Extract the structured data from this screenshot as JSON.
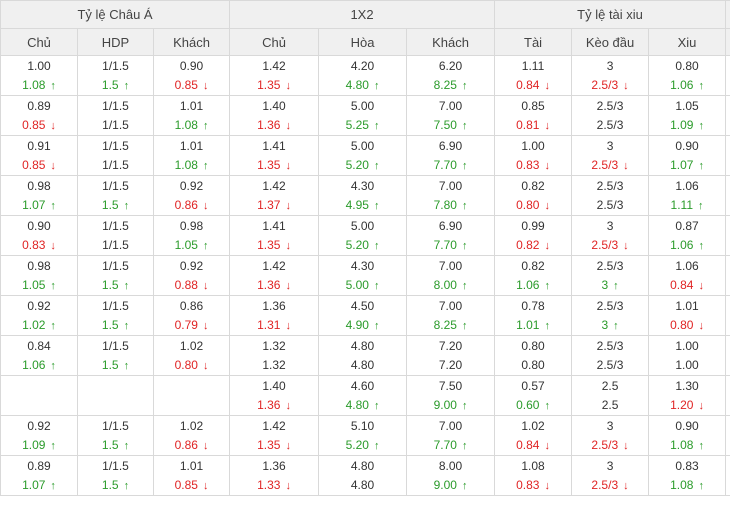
{
  "groups": [
    "Tỷ lệ Châu Á",
    "1X2",
    "Tỷ lệ tài xiu"
  ],
  "columns": [
    "Chủ",
    "HDP",
    "Khách",
    "Chủ",
    "Hòa",
    "Khách",
    "Tài",
    "Kèo đầu",
    "Xiu"
  ],
  "rows": [
    [
      [
        {
          "v": "1.00",
          "d": ""
        },
        {
          "v": "1.08",
          "d": "up"
        }
      ],
      [
        {
          "v": "1/1.5",
          "d": ""
        },
        {
          "v": "1.5",
          "d": "up"
        }
      ],
      [
        {
          "v": "0.90",
          "d": ""
        },
        {
          "v": "0.85",
          "d": "down"
        }
      ],
      [
        {
          "v": "1.42",
          "d": ""
        },
        {
          "v": "1.35",
          "d": "down"
        }
      ],
      [
        {
          "v": "4.20",
          "d": ""
        },
        {
          "v": "4.80",
          "d": "up"
        }
      ],
      [
        {
          "v": "6.20",
          "d": ""
        },
        {
          "v": "8.25",
          "d": "up"
        }
      ],
      [
        {
          "v": "1.11",
          "d": ""
        },
        {
          "v": "0.84",
          "d": "down"
        }
      ],
      [
        {
          "v": "3",
          "d": ""
        },
        {
          "v": "2.5/3",
          "d": "down"
        }
      ],
      [
        {
          "v": "0.80",
          "d": ""
        },
        {
          "v": "1.06",
          "d": "up"
        }
      ]
    ],
    [
      [
        {
          "v": "0.89",
          "d": ""
        },
        {
          "v": "0.85",
          "d": "down"
        }
      ],
      [
        {
          "v": "1/1.5",
          "d": ""
        },
        {
          "v": "1/1.5",
          "d": ""
        }
      ],
      [
        {
          "v": "1.01",
          "d": ""
        },
        {
          "v": "1.08",
          "d": "up"
        }
      ],
      [
        {
          "v": "1.40",
          "d": ""
        },
        {
          "v": "1.36",
          "d": "down"
        }
      ],
      [
        {
          "v": "5.00",
          "d": ""
        },
        {
          "v": "5.25",
          "d": "up"
        }
      ],
      [
        {
          "v": "7.00",
          "d": ""
        },
        {
          "v": "7.50",
          "d": "up"
        }
      ],
      [
        {
          "v": "0.85",
          "d": ""
        },
        {
          "v": "0.81",
          "d": "down"
        }
      ],
      [
        {
          "v": "2.5/3",
          "d": ""
        },
        {
          "v": "2.5/3",
          "d": ""
        }
      ],
      [
        {
          "v": "1.05",
          "d": ""
        },
        {
          "v": "1.09",
          "d": "up"
        }
      ]
    ],
    [
      [
        {
          "v": "0.91",
          "d": ""
        },
        {
          "v": "0.85",
          "d": "down"
        }
      ],
      [
        {
          "v": "1/1.5",
          "d": ""
        },
        {
          "v": "1/1.5",
          "d": ""
        }
      ],
      [
        {
          "v": "1.01",
          "d": ""
        },
        {
          "v": "1.08",
          "d": "up"
        }
      ],
      [
        {
          "v": "1.41",
          "d": ""
        },
        {
          "v": "1.35",
          "d": "down"
        }
      ],
      [
        {
          "v": "5.00",
          "d": ""
        },
        {
          "v": "5.20",
          "d": "up"
        }
      ],
      [
        {
          "v": "6.90",
          "d": ""
        },
        {
          "v": "7.70",
          "d": "up"
        }
      ],
      [
        {
          "v": "1.00",
          "d": ""
        },
        {
          "v": "0.83",
          "d": "down"
        }
      ],
      [
        {
          "v": "3",
          "d": ""
        },
        {
          "v": "2.5/3",
          "d": "down"
        }
      ],
      [
        {
          "v": "0.90",
          "d": ""
        },
        {
          "v": "1.07",
          "d": "up"
        }
      ]
    ],
    [
      [
        {
          "v": "0.98",
          "d": ""
        },
        {
          "v": "1.07",
          "d": "up"
        }
      ],
      [
        {
          "v": "1/1.5",
          "d": ""
        },
        {
          "v": "1.5",
          "d": "up"
        }
      ],
      [
        {
          "v": "0.92",
          "d": ""
        },
        {
          "v": "0.86",
          "d": "down"
        }
      ],
      [
        {
          "v": "1.42",
          "d": ""
        },
        {
          "v": "1.37",
          "d": "down"
        }
      ],
      [
        {
          "v": "4.30",
          "d": ""
        },
        {
          "v": "4.95",
          "d": "up"
        }
      ],
      [
        {
          "v": "7.00",
          "d": ""
        },
        {
          "v": "7.80",
          "d": "up"
        }
      ],
      [
        {
          "v": "0.82",
          "d": ""
        },
        {
          "v": "0.80",
          "d": "down"
        }
      ],
      [
        {
          "v": "2.5/3",
          "d": ""
        },
        {
          "v": "2.5/3",
          "d": ""
        }
      ],
      [
        {
          "v": "1.06",
          "d": ""
        },
        {
          "v": "1.11",
          "d": "up"
        }
      ]
    ],
    [
      [
        {
          "v": "0.90",
          "d": ""
        },
        {
          "v": "0.83",
          "d": "down"
        }
      ],
      [
        {
          "v": "1/1.5",
          "d": ""
        },
        {
          "v": "1/1.5",
          "d": ""
        }
      ],
      [
        {
          "v": "0.98",
          "d": ""
        },
        {
          "v": "1.05",
          "d": "up"
        }
      ],
      [
        {
          "v": "1.41",
          "d": ""
        },
        {
          "v": "1.35",
          "d": "down"
        }
      ],
      [
        {
          "v": "5.00",
          "d": ""
        },
        {
          "v": "5.20",
          "d": "up"
        }
      ],
      [
        {
          "v": "6.90",
          "d": ""
        },
        {
          "v": "7.70",
          "d": "up"
        }
      ],
      [
        {
          "v": "0.99",
          "d": ""
        },
        {
          "v": "0.82",
          "d": "down"
        }
      ],
      [
        {
          "v": "3",
          "d": ""
        },
        {
          "v": "2.5/3",
          "d": "down"
        }
      ],
      [
        {
          "v": "0.87",
          "d": ""
        },
        {
          "v": "1.06",
          "d": "up"
        }
      ]
    ],
    [
      [
        {
          "v": "0.98",
          "d": ""
        },
        {
          "v": "1.05",
          "d": "up"
        }
      ],
      [
        {
          "v": "1/1.5",
          "d": ""
        },
        {
          "v": "1.5",
          "d": "up"
        }
      ],
      [
        {
          "v": "0.92",
          "d": ""
        },
        {
          "v": "0.88",
          "d": "down"
        }
      ],
      [
        {
          "v": "1.42",
          "d": ""
        },
        {
          "v": "1.36",
          "d": "down"
        }
      ],
      [
        {
          "v": "4.30",
          "d": ""
        },
        {
          "v": "5.00",
          "d": "up"
        }
      ],
      [
        {
          "v": "7.00",
          "d": ""
        },
        {
          "v": "8.00",
          "d": "up"
        }
      ],
      [
        {
          "v": "0.82",
          "d": ""
        },
        {
          "v": "1.06",
          "d": "up"
        }
      ],
      [
        {
          "v": "2.5/3",
          "d": ""
        },
        {
          "v": "3",
          "d": "up"
        }
      ],
      [
        {
          "v": "1.06",
          "d": ""
        },
        {
          "v": "0.84",
          "d": "down"
        }
      ]
    ],
    [
      [
        {
          "v": "0.92",
          "d": ""
        },
        {
          "v": "1.02",
          "d": "up"
        }
      ],
      [
        {
          "v": "1/1.5",
          "d": ""
        },
        {
          "v": "1.5",
          "d": "up"
        }
      ],
      [
        {
          "v": "0.86",
          "d": ""
        },
        {
          "v": "0.79",
          "d": "down"
        }
      ],
      [
        {
          "v": "1.36",
          "d": ""
        },
        {
          "v": "1.31",
          "d": "down"
        }
      ],
      [
        {
          "v": "4.50",
          "d": ""
        },
        {
          "v": "4.90",
          "d": "up"
        }
      ],
      [
        {
          "v": "7.00",
          "d": ""
        },
        {
          "v": "8.25",
          "d": "up"
        }
      ],
      [
        {
          "v": "0.78",
          "d": ""
        },
        {
          "v": "1.01",
          "d": "up"
        }
      ],
      [
        {
          "v": "2.5/3",
          "d": ""
        },
        {
          "v": "3",
          "d": "up"
        }
      ],
      [
        {
          "v": "1.01",
          "d": ""
        },
        {
          "v": "0.80",
          "d": "down"
        }
      ]
    ],
    [
      [
        {
          "v": "0.84",
          "d": ""
        },
        {
          "v": "1.06",
          "d": "up"
        }
      ],
      [
        {
          "v": "1/1.5",
          "d": ""
        },
        {
          "v": "1.5",
          "d": "up"
        }
      ],
      [
        {
          "v": "1.02",
          "d": ""
        },
        {
          "v": "0.80",
          "d": "down"
        }
      ],
      [
        {
          "v": "1.32",
          "d": ""
        },
        {
          "v": "1.32",
          "d": ""
        }
      ],
      [
        {
          "v": "4.80",
          "d": ""
        },
        {
          "v": "4.80",
          "d": ""
        }
      ],
      [
        {
          "v": "7.20",
          "d": ""
        },
        {
          "v": "7.20",
          "d": ""
        }
      ],
      [
        {
          "v": "0.80",
          "d": ""
        },
        {
          "v": "0.80",
          "d": ""
        }
      ],
      [
        {
          "v": "2.5/3",
          "d": ""
        },
        {
          "v": "2.5/3",
          "d": ""
        }
      ],
      [
        {
          "v": "1.00",
          "d": ""
        },
        {
          "v": "1.00",
          "d": ""
        }
      ]
    ],
    [
      [
        {
          "v": "",
          "d": ""
        },
        {
          "v": "",
          "d": ""
        }
      ],
      [
        {
          "v": "",
          "d": ""
        },
        {
          "v": "",
          "d": ""
        }
      ],
      [
        {
          "v": "",
          "d": ""
        },
        {
          "v": "",
          "d": ""
        }
      ],
      [
        {
          "v": "1.40",
          "d": ""
        },
        {
          "v": "1.36",
          "d": "down"
        }
      ],
      [
        {
          "v": "4.60",
          "d": ""
        },
        {
          "v": "4.80",
          "d": "up"
        }
      ],
      [
        {
          "v": "7.50",
          "d": ""
        },
        {
          "v": "9.00",
          "d": "up"
        }
      ],
      [
        {
          "v": "0.57",
          "d": ""
        },
        {
          "v": "0.60",
          "d": "up"
        }
      ],
      [
        {
          "v": "2.5",
          "d": ""
        },
        {
          "v": "2.5",
          "d": ""
        }
      ],
      [
        {
          "v": "1.30",
          "d": ""
        },
        {
          "v": "1.20",
          "d": "down"
        }
      ]
    ],
    [
      [
        {
          "v": "0.92",
          "d": ""
        },
        {
          "v": "1.09",
          "d": "up"
        }
      ],
      [
        {
          "v": "1/1.5",
          "d": ""
        },
        {
          "v": "1.5",
          "d": "up"
        }
      ],
      [
        {
          "v": "1.02",
          "d": ""
        },
        {
          "v": "0.86",
          "d": "down"
        }
      ],
      [
        {
          "v": "1.42",
          "d": ""
        },
        {
          "v": "1.35",
          "d": "down"
        }
      ],
      [
        {
          "v": "5.10",
          "d": ""
        },
        {
          "v": "5.20",
          "d": "up"
        }
      ],
      [
        {
          "v": "7.00",
          "d": ""
        },
        {
          "v": "7.70",
          "d": "up"
        }
      ],
      [
        {
          "v": "1.02",
          "d": ""
        },
        {
          "v": "0.84",
          "d": "down"
        }
      ],
      [
        {
          "v": "3",
          "d": ""
        },
        {
          "v": "2.5/3",
          "d": "down"
        }
      ],
      [
        {
          "v": "0.90",
          "d": ""
        },
        {
          "v": "1.08",
          "d": "up"
        }
      ]
    ],
    [
      [
        {
          "v": "0.89",
          "d": ""
        },
        {
          "v": "1.07",
          "d": "up"
        }
      ],
      [
        {
          "v": "1/1.5",
          "d": ""
        },
        {
          "v": "1.5",
          "d": "up"
        }
      ],
      [
        {
          "v": "1.01",
          "d": ""
        },
        {
          "v": "0.85",
          "d": "down"
        }
      ],
      [
        {
          "v": "1.36",
          "d": ""
        },
        {
          "v": "1.33",
          "d": "down"
        }
      ],
      [
        {
          "v": "4.80",
          "d": ""
        },
        {
          "v": "4.80",
          "d": ""
        }
      ],
      [
        {
          "v": "8.00",
          "d": ""
        },
        {
          "v": "9.00",
          "d": "up"
        }
      ],
      [
        {
          "v": "1.08",
          "d": ""
        },
        {
          "v": "0.83",
          "d": "down"
        }
      ],
      [
        {
          "v": "3",
          "d": ""
        },
        {
          "v": "2.5/3",
          "d": "down"
        }
      ],
      [
        {
          "v": "0.83",
          "d": ""
        },
        {
          "v": "1.08",
          "d": "up"
        }
      ]
    ]
  ],
  "colors": {
    "up": "#2b9b2b",
    "down": "#e02424",
    "header_bg": "#f0f0f0",
    "border": "#d9d9d9"
  },
  "icons": {
    "up": "arrow-up-icon",
    "down": "arrow-down-icon"
  }
}
